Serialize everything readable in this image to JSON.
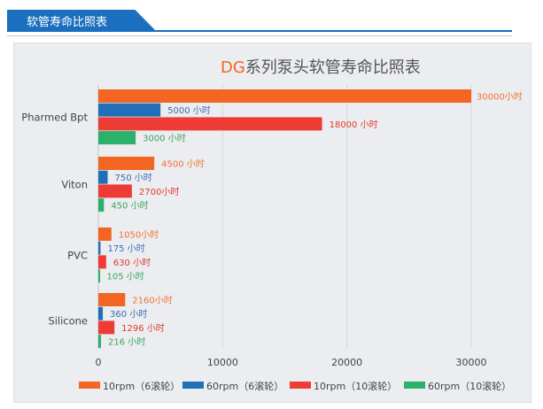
{
  "header": {
    "title": "软管寿命比照表"
  },
  "chart_data": {
    "type": "bar",
    "orientation": "horizontal",
    "title_prefix": "DG",
    "title_rest": "系列泵头软管寿命比照表",
    "categories": [
      "Pharmed Bpt",
      "Viton",
      "PVC",
      "Silicone"
    ],
    "xlim": [
      0,
      30000
    ],
    "xticks": [
      "0",
      "10000",
      "20000",
      "30000"
    ],
    "grid": true,
    "legend": "bottom",
    "series": [
      {
        "name": "10rpm（6滚轮）",
        "color": "#f26522",
        "label_color": "#f07030",
        "values": [
          30000,
          4500,
          1050,
          2160
        ],
        "labels": [
          "30000小时",
          "4500  小时",
          "1050小时",
          "2160小时"
        ]
      },
      {
        "name": "60rpm（6滚轮）",
        "color": "#1f70b8",
        "label_color": "#3b6db3",
        "values": [
          5000,
          750,
          175,
          360
        ],
        "labels": [
          "5000  小时",
          "750  小时",
          "175  小时",
          "360    小时"
        ]
      },
      {
        "name": "10rpm（10滚轮）",
        "color": "#ef3b36",
        "label_color": "#e0392d",
        "values": [
          18000,
          2700,
          630,
          1296
        ],
        "labels": [
          "18000  小时",
          "2700小时",
          "630  小时",
          "1296  小时"
        ]
      },
      {
        "name": "60rpm（10滚轮）",
        "color": "#2bb16c",
        "label_color": "#3fa35a",
        "values": [
          3000,
          450,
          105,
          216
        ],
        "labels": [
          "3000 小时",
          "450  小时",
          "105  小时",
          "216  小时"
        ]
      }
    ]
  }
}
